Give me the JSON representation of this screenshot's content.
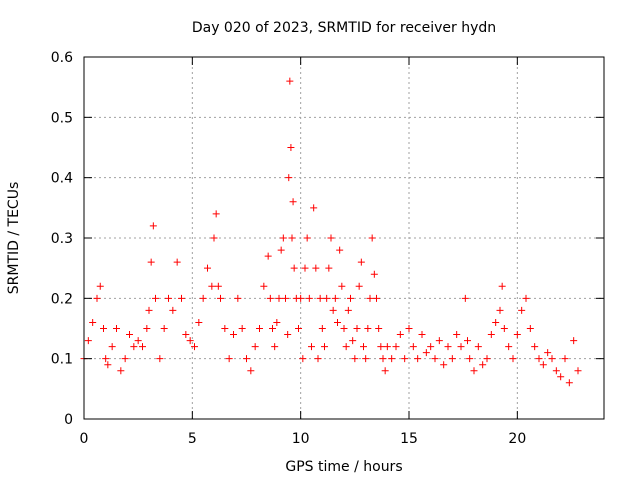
{
  "chart_data": {
    "type": "scatter",
    "title": "Day 020 of 2023, SRMTID for receiver hydn",
    "xlabel": "GPS time / hours",
    "ylabel": "SRMTID / TECUs",
    "xlim": [
      0,
      24
    ],
    "ylim": [
      0,
      0.6
    ],
    "grid": true,
    "x_ticks": [
      0,
      5,
      10,
      15,
      20
    ],
    "x_tick_labels": [
      "0",
      "5",
      "10",
      "15",
      "20"
    ],
    "y_ticks": [
      0,
      0.1,
      0.2,
      0.3,
      0.4,
      0.5,
      0.6
    ],
    "y_tick_labels": [
      "0",
      "0.1",
      "0.2",
      "0.3",
      "0.4",
      "0.5",
      "0.6"
    ],
    "marker": "+",
    "series": [
      {
        "name": "SRMTID",
        "color": "#ff0000",
        "x": [
          0.0,
          0.2,
          0.4,
          0.6,
          0.75,
          0.9,
          1.0,
          1.1,
          1.3,
          1.5,
          1.7,
          1.9,
          2.1,
          2.3,
          2.5,
          2.7,
          2.9,
          3.0,
          3.1,
          3.2,
          3.3,
          3.5,
          3.7,
          3.9,
          4.1,
          4.3,
          4.5,
          4.7,
          4.9,
          5.1,
          5.3,
          5.5,
          5.7,
          5.9,
          6.0,
          6.1,
          6.2,
          6.3,
          6.5,
          6.7,
          6.9,
          7.1,
          7.3,
          7.5,
          7.7,
          7.9,
          8.1,
          8.3,
          8.5,
          8.6,
          8.7,
          8.8,
          8.9,
          9.0,
          9.1,
          9.2,
          9.3,
          9.4,
          9.45,
          9.5,
          9.55,
          9.6,
          9.65,
          9.7,
          9.8,
          9.9,
          10.0,
          10.1,
          10.2,
          10.3,
          10.4,
          10.5,
          10.6,
          10.7,
          10.8,
          10.9,
          11.0,
          11.1,
          11.2,
          11.3,
          11.4,
          11.5,
          11.6,
          11.7,
          11.8,
          11.9,
          12.0,
          12.1,
          12.2,
          12.3,
          12.4,
          12.5,
          12.6,
          12.7,
          12.8,
          12.9,
          13.0,
          13.1,
          13.2,
          13.3,
          13.4,
          13.5,
          13.6,
          13.7,
          13.8,
          13.9,
          14.0,
          14.2,
          14.4,
          14.6,
          14.8,
          15.0,
          15.2,
          15.4,
          15.6,
          15.8,
          16.0,
          16.2,
          16.4,
          16.6,
          16.8,
          17.0,
          17.2,
          17.4,
          17.6,
          17.7,
          17.8,
          18.0,
          18.2,
          18.4,
          18.6,
          18.8,
          19.0,
          19.2,
          19.3,
          19.4,
          19.6,
          19.8,
          20.0,
          20.2,
          20.4,
          20.6,
          20.8,
          21.0,
          21.2,
          21.4,
          21.6,
          21.8,
          22.0,
          22.2,
          22.4,
          22.6,
          22.8
        ],
        "y": [
          0.1,
          0.13,
          0.16,
          0.2,
          0.22,
          0.15,
          0.1,
          0.09,
          0.12,
          0.15,
          0.08,
          0.1,
          0.14,
          0.12,
          0.13,
          0.12,
          0.15,
          0.18,
          0.26,
          0.32,
          0.2,
          0.1,
          0.15,
          0.2,
          0.18,
          0.26,
          0.2,
          0.14,
          0.13,
          0.12,
          0.16,
          0.2,
          0.25,
          0.22,
          0.3,
          0.34,
          0.22,
          0.2,
          0.15,
          0.1,
          0.14,
          0.2,
          0.15,
          0.1,
          0.08,
          0.12,
          0.15,
          0.22,
          0.27,
          0.2,
          0.15,
          0.12,
          0.16,
          0.2,
          0.28,
          0.3,
          0.2,
          0.14,
          0.4,
          0.56,
          0.45,
          0.3,
          0.36,
          0.25,
          0.2,
          0.15,
          0.2,
          0.1,
          0.25,
          0.3,
          0.2,
          0.12,
          0.35,
          0.25,
          0.1,
          0.2,
          0.15,
          0.12,
          0.2,
          0.25,
          0.3,
          0.18,
          0.2,
          0.16,
          0.28,
          0.22,
          0.15,
          0.12,
          0.18,
          0.2,
          0.13,
          0.1,
          0.15,
          0.22,
          0.26,
          0.12,
          0.1,
          0.15,
          0.2,
          0.3,
          0.24,
          0.2,
          0.15,
          0.12,
          0.1,
          0.08,
          0.12,
          0.1,
          0.12,
          0.14,
          0.1,
          0.15,
          0.12,
          0.1,
          0.14,
          0.11,
          0.12,
          0.1,
          0.13,
          0.09,
          0.12,
          0.1,
          0.14,
          0.12,
          0.2,
          0.13,
          0.1,
          0.08,
          0.12,
          0.09,
          0.1,
          0.14,
          0.16,
          0.18,
          0.22,
          0.15,
          0.12,
          0.1,
          0.14,
          0.18,
          0.2,
          0.15,
          0.12,
          0.1,
          0.09,
          0.11,
          0.1,
          0.08,
          0.07,
          0.1,
          0.06,
          0.13,
          0.08
        ]
      }
    ]
  }
}
